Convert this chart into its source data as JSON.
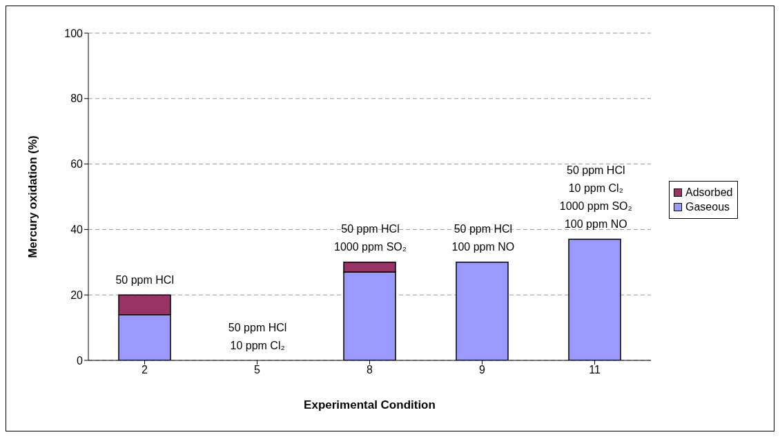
{
  "chart_data": {
    "type": "bar",
    "stacked": true,
    "xlabel": "Experimental Condition",
    "ylabel": "Mercury oxidation (%)",
    "categories": [
      "2",
      "5",
      "8",
      "9",
      "11"
    ],
    "series": [
      {
        "name": "Gaseous",
        "color": "#9999ff",
        "values": [
          14,
          null,
          27,
          30,
          37
        ]
      },
      {
        "name": "Adsorbed",
        "color": "#993366",
        "values": [
          6,
          null,
          3,
          null,
          null
        ]
      }
    ],
    "ylim": [
      0,
      100
    ],
    "yticks": [
      0,
      20,
      40,
      60,
      80,
      100
    ],
    "grid": "y",
    "legend": "right",
    "annotations": [
      "50 ppm HCl",
      "50 ppm HCl\n10 ppm Cl₂",
      "50 ppm HCl\n1000 ppm SO₂",
      "50 ppm HCl\n100 ppm NO",
      "50 ppm HCl\n10 ppm Cl₂\n1000 ppm SO₂\n100 ppm NO"
    ]
  }
}
